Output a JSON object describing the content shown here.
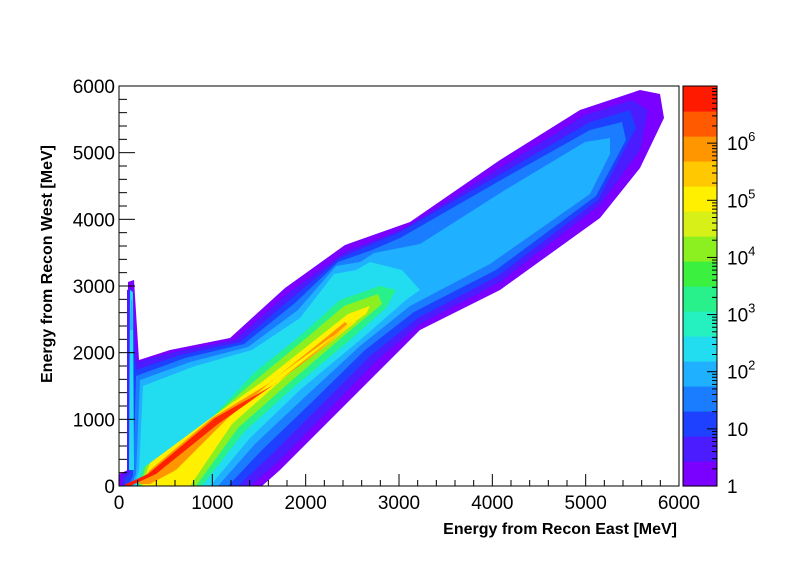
{
  "chart_data": {
    "type": "heatmap",
    "title": "",
    "xlabel": "Energy from Recon East [MeV]",
    "ylabel": "Energy from Recon West [MeV]",
    "xlim": [
      0,
      6000
    ],
    "ylim": [
      0,
      6000
    ],
    "x_ticks": [
      "0",
      "1000",
      "2000",
      "3000",
      "4000",
      "5000",
      "6000"
    ],
    "y_ticks": [
      "0",
      "1000",
      "2000",
      "3000",
      "4000",
      "5000",
      "6000"
    ],
    "z_scale": "log",
    "zlim": [
      1,
      10000000
    ],
    "z_ticks": [
      "1",
      "10",
      "10^2",
      "10^3",
      "10^4",
      "10^5",
      "10^6"
    ],
    "grid": false,
    "colormap": [
      "#7a00ff",
      "#4a1cff",
      "#1e40ff",
      "#1a7cff",
      "#1fb0ff",
      "#22dcf0",
      "#24f0c0",
      "#28f08a",
      "#3cf040",
      "#8cf020",
      "#d6f018",
      "#fff000",
      "#ffc800",
      "#ff9600",
      "#ff5a00",
      "#ff1a00"
    ],
    "regions": [
      {
        "name": "main band",
        "points": [
          [
            50,
            30
          ],
          [
            1000,
            900
          ],
          [
            2000,
            1800
          ],
          [
            2500,
            2450
          ]
        ],
        "peak_count": 1000000
      },
      {
        "name": "upper band",
        "points": [
          [
            2500,
            2100
          ],
          [
            3500,
            3000
          ],
          [
            4500,
            3900
          ],
          [
            5700,
            5700
          ]
        ],
        "peak_count": 300
      },
      {
        "name": "vertical spike",
        "points": [
          [
            100,
            0
          ],
          [
            100,
            3000
          ]
        ],
        "peak_count": 50
      },
      {
        "name": "plateau",
        "points": [
          [
            150,
            1650
          ],
          [
            1500,
            2000
          ]
        ],
        "peak_count": 200
      }
    ]
  }
}
